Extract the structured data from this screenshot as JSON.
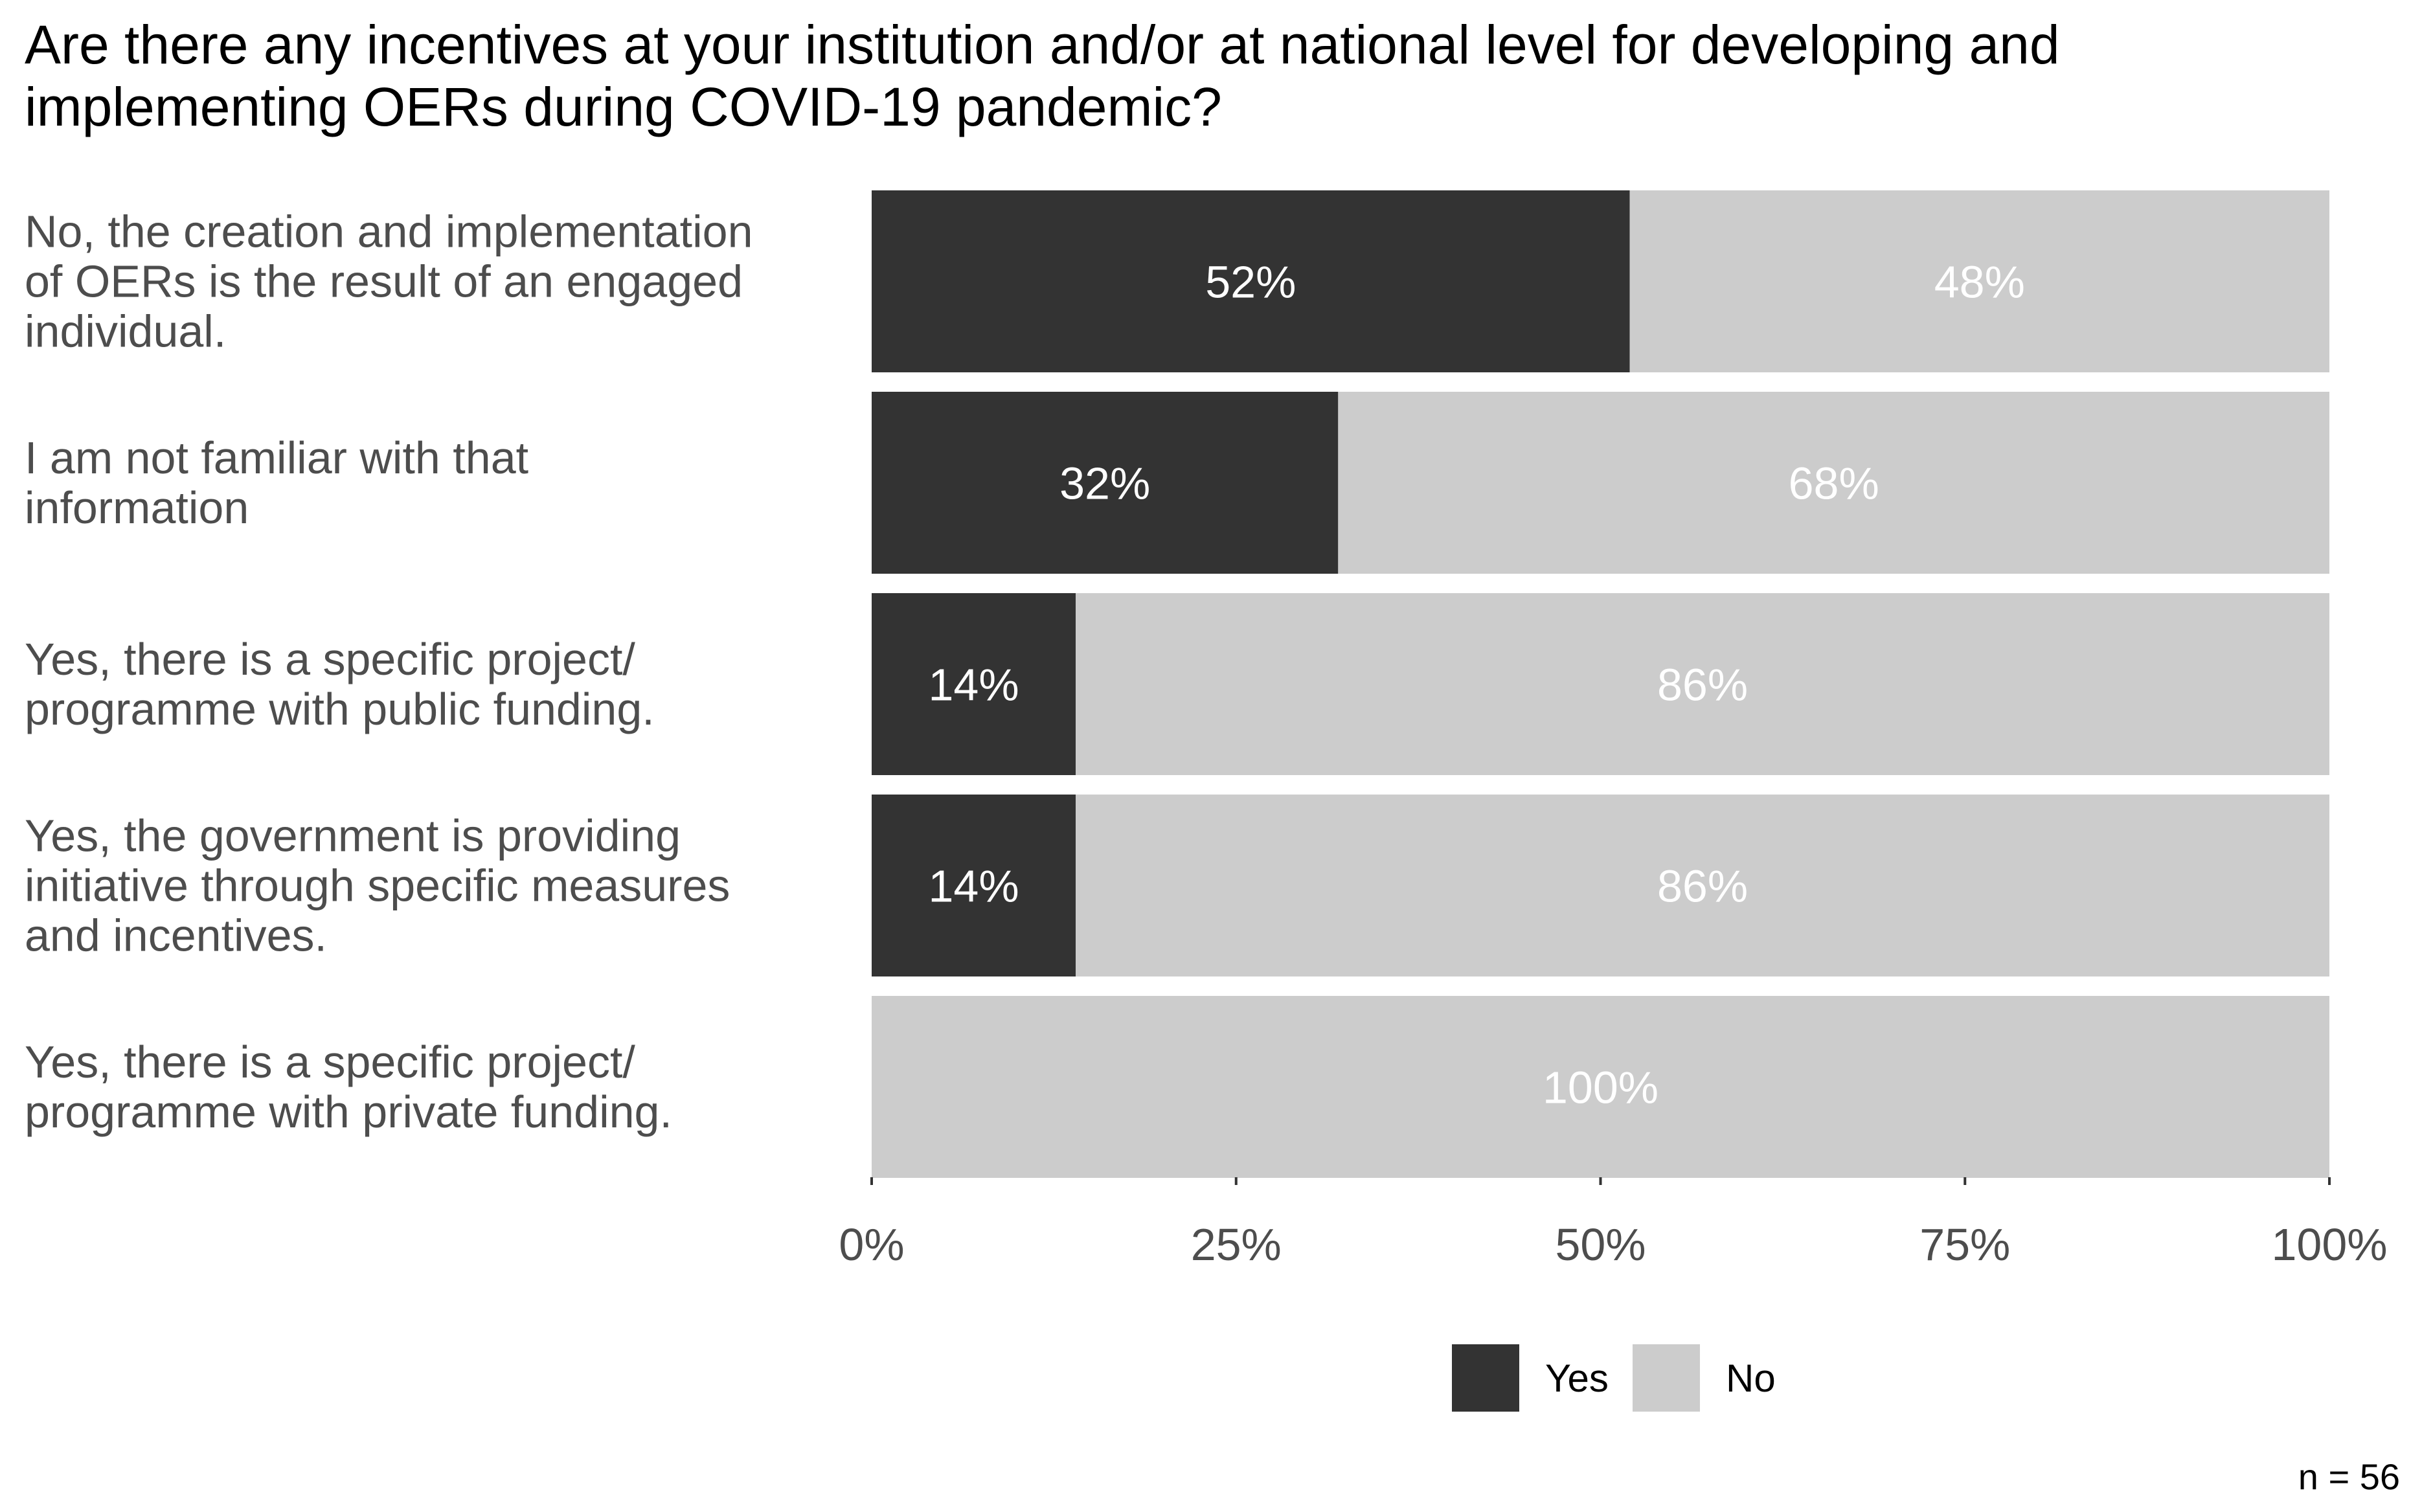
{
  "chart_data": {
    "type": "bar",
    "orientation": "horizontal",
    "stacked": true,
    "title": "Are there any incentives at your institution and/or at national level for developing and implementing OERs during COVID-19 pandemic?",
    "title_lines": [
      "Are there any incentives at your institution and/or at national level for developing and",
      "implementing OERs during COVID-19 pandemic?"
    ],
    "categories": [
      "No, the creation and implementation of OERs is the result of an engaged individual.",
      "I am not familiar with that information",
      "Yes, there is a specific project/ programme with public funding.",
      "Yes, the government is providing initiative through specific measures and incentives.",
      "Yes, there is a specific project/ programme with private funding."
    ],
    "category_lines": [
      [
        "No, the creation and implementation",
        "of OERs is the result of an engaged",
        "individual."
      ],
      [
        "I am not familiar with that",
        "information"
      ],
      [
        "Yes, there is a specific project/",
        "programme with public funding."
      ],
      [
        "Yes, the government is providing",
        "initiative through specific measures",
        "and incentives."
      ],
      [
        "Yes, there is a specific project/",
        "programme with private funding."
      ]
    ],
    "series": [
      {
        "name": "Yes",
        "color": "#333333",
        "values": [
          52,
          32,
          14,
          14,
          0
        ]
      },
      {
        "name": "No",
        "color": "#cccccc",
        "values": [
          48,
          68,
          86,
          86,
          100
        ]
      }
    ],
    "xlim": [
      0,
      100
    ],
    "xticks": [
      0,
      25,
      50,
      75,
      100
    ],
    "xtick_labels": [
      "0%",
      "25%",
      "50%",
      "75%",
      "100%"
    ],
    "legend_position": "bottom",
    "caption": "n = 56",
    "grid": false
  }
}
